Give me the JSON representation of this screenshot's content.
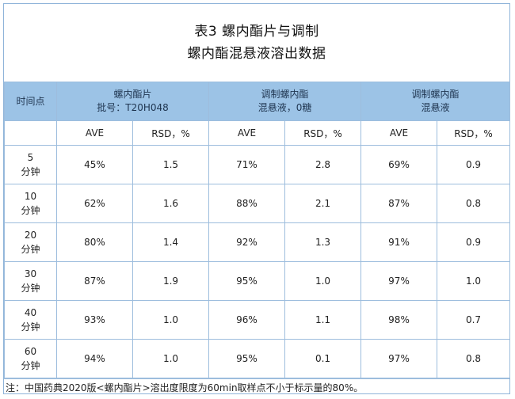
{
  "title": {
    "line1": "表3 螺内酯片与调制",
    "line2": "螺内酯混悬液溶出数据"
  },
  "header": {
    "time_label": "时间点",
    "groups": [
      {
        "line1": "螺内酯片",
        "line2": "批号：T20H048"
      },
      {
        "line1": "调制螺内酯",
        "line2": "混悬液，0糖"
      },
      {
        "line1": "调制螺内酯",
        "line2": "混悬液"
      }
    ]
  },
  "subheader": {
    "ave": "AVE",
    "rsd": "RSD，%"
  },
  "rows": [
    {
      "time_num": "5",
      "time_unit": "分钟",
      "cells": [
        "45%",
        "1.5",
        "71%",
        "2.8",
        "69%",
        "0.9"
      ]
    },
    {
      "time_num": "10",
      "time_unit": "分钟",
      "cells": [
        "62%",
        "1.6",
        "88%",
        "2.1",
        "87%",
        "0.8"
      ]
    },
    {
      "time_num": "20",
      "time_unit": "分钟",
      "cells": [
        "80%",
        "1.4",
        "92%",
        "1.3",
        "91%",
        "0.9"
      ]
    },
    {
      "time_num": "30",
      "time_unit": "分钟",
      "cells": [
        "87%",
        "1.9",
        "95%",
        "1.0",
        "97%",
        "1.0"
      ]
    },
    {
      "time_num": "40",
      "time_unit": "分钟",
      "cells": [
        "93%",
        "1.0",
        "96%",
        "1.1",
        "98%",
        "0.7"
      ]
    },
    {
      "time_num": "60",
      "time_unit": "分钟",
      "cells": [
        "94%",
        "1.0",
        "95%",
        "0.1",
        "97%",
        "0.8"
      ]
    }
  ],
  "note": "注：中国药典2020版<螺内酯片>溶出度限度为60min取样点不小于标示量的80%。"
}
